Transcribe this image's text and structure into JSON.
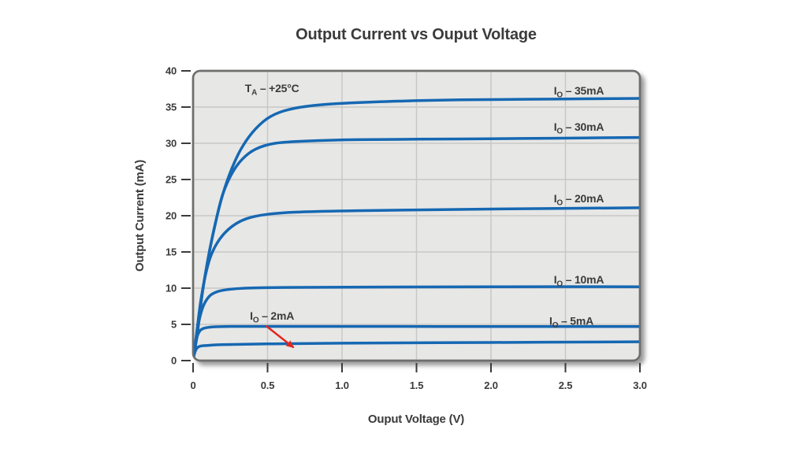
{
  "chart_data": {
    "type": "line",
    "title": "Output Current vs Ouput Voltage",
    "xlabel": "Ouput Voltage (V)",
    "ylabel": "Output Current (mA)",
    "xlim": [
      0,
      3
    ],
    "ylim": [
      0,
      40
    ],
    "x_ticks": [
      "0",
      "0.5",
      "1.0",
      "1.5",
      "2.0",
      "2.5",
      "3.0"
    ],
    "x_tick_values": [
      0,
      0.5,
      1,
      1.5,
      2,
      2.5,
      3
    ],
    "y_ticks": [
      "0",
      "5",
      "10",
      "15",
      "20",
      "25",
      "30",
      "35",
      "40"
    ],
    "y_tick_values": [
      0,
      5,
      10,
      15,
      20,
      25,
      30,
      35,
      40
    ],
    "grid": true,
    "legend_position": "inline-labels",
    "plot_bg_color": "#e7e7e6",
    "grid_color": "#c7c7c6",
    "border_color": "#6e6e6d",
    "line_color": "#1668b2",
    "text_color": "#3b3b3b",
    "arrow_color": "#e3261d",
    "annotation": {
      "pre": "T",
      "sub": "A",
      "post": " – +25°C",
      "x": 0.53,
      "y": 37.6
    },
    "series": [
      {
        "name": "IO – 35mA",
        "label": {
          "pre": "I",
          "sub": "O",
          "post": " – 35mA"
        },
        "label_at": [
          2.59,
          37.3
        ],
        "points": [
          [
            0,
            0
          ],
          [
            0.03,
            4
          ],
          [
            0.06,
            9
          ],
          [
            0.1,
            14
          ],
          [
            0.15,
            19
          ],
          [
            0.2,
            23
          ],
          [
            0.26,
            26.5
          ],
          [
            0.33,
            29.5
          ],
          [
            0.42,
            32
          ],
          [
            0.52,
            33.7
          ],
          [
            0.65,
            34.7
          ],
          [
            0.85,
            35.3
          ],
          [
            1.2,
            35.7
          ],
          [
            1.8,
            36
          ],
          [
            2.4,
            36.1
          ],
          [
            3,
            36.2
          ]
        ]
      },
      {
        "name": "IO – 30mA",
        "label": {
          "pre": "I",
          "sub": "O",
          "post": " – 30mA"
        },
        "label_at": [
          2.59,
          32.3
        ],
        "points": [
          [
            0,
            0
          ],
          [
            0.03,
            4
          ],
          [
            0.06,
            9
          ],
          [
            0.1,
            14
          ],
          [
            0.15,
            19
          ],
          [
            0.2,
            23
          ],
          [
            0.26,
            25.8
          ],
          [
            0.33,
            27.8
          ],
          [
            0.42,
            29.2
          ],
          [
            0.55,
            30
          ],
          [
            0.75,
            30.3
          ],
          [
            1.1,
            30.5
          ],
          [
            1.8,
            30.6
          ],
          [
            2.4,
            30.7
          ],
          [
            3,
            30.8
          ]
        ]
      },
      {
        "name": "IO – 20mA",
        "label": {
          "pre": "I",
          "sub": "O",
          "post": " – 20mA"
        },
        "label_at": [
          2.59,
          22.4
        ],
        "points": [
          [
            0,
            0
          ],
          [
            0.025,
            4
          ],
          [
            0.05,
            8
          ],
          [
            0.08,
            11.5
          ],
          [
            0.12,
            14.5
          ],
          [
            0.18,
            16.8
          ],
          [
            0.26,
            18.5
          ],
          [
            0.36,
            19.6
          ],
          [
            0.5,
            20.2
          ],
          [
            0.7,
            20.5
          ],
          [
            1.1,
            20.7
          ],
          [
            1.9,
            20.9
          ],
          [
            3,
            21.1
          ]
        ]
      },
      {
        "name": "IO – 10mA",
        "label": {
          "pre": "I",
          "sub": "O",
          "post": " – 10mA"
        },
        "label_at": [
          2.59,
          11.2
        ],
        "points": [
          [
            0,
            0
          ],
          [
            0.02,
            3
          ],
          [
            0.04,
            5.5
          ],
          [
            0.07,
            7.6
          ],
          [
            0.11,
            8.9
          ],
          [
            0.16,
            9.5
          ],
          [
            0.23,
            9.8
          ],
          [
            0.35,
            10
          ],
          [
            0.6,
            10.1
          ],
          [
            1.2,
            10.15
          ],
          [
            2,
            10.2
          ],
          [
            3,
            10.2
          ]
        ]
      },
      {
        "name": "IO – 5mA",
        "label": {
          "pre": "I",
          "sub": "O",
          "post": " – 5mA"
        },
        "label_at": [
          2.54,
          5.5
        ],
        "points": [
          [
            0,
            0
          ],
          [
            0.015,
            2
          ],
          [
            0.03,
            3.5
          ],
          [
            0.05,
            4.2
          ],
          [
            0.08,
            4.5
          ],
          [
            0.13,
            4.65
          ],
          [
            0.25,
            4.72
          ],
          [
            0.5,
            4.72
          ],
          [
            1,
            4.72
          ],
          [
            2,
            4.7
          ],
          [
            3,
            4.7
          ]
        ]
      },
      {
        "name": "IO – 2mA",
        "label": {
          "pre": "I",
          "sub": "O",
          "post": " – 2mA"
        },
        "label_at": [
          0.53,
          6.2
        ],
        "points": [
          [
            0,
            0
          ],
          [
            0.01,
            1
          ],
          [
            0.025,
            1.7
          ],
          [
            0.05,
            2
          ],
          [
            0.1,
            2.1
          ],
          [
            0.2,
            2.2
          ],
          [
            0.5,
            2.3
          ],
          [
            1,
            2.4
          ],
          [
            2,
            2.5
          ],
          [
            3,
            2.6
          ]
        ]
      }
    ],
    "arrow": {
      "from": [
        0.49,
        4.8
      ],
      "to": [
        0.675,
        1.8
      ]
    }
  }
}
